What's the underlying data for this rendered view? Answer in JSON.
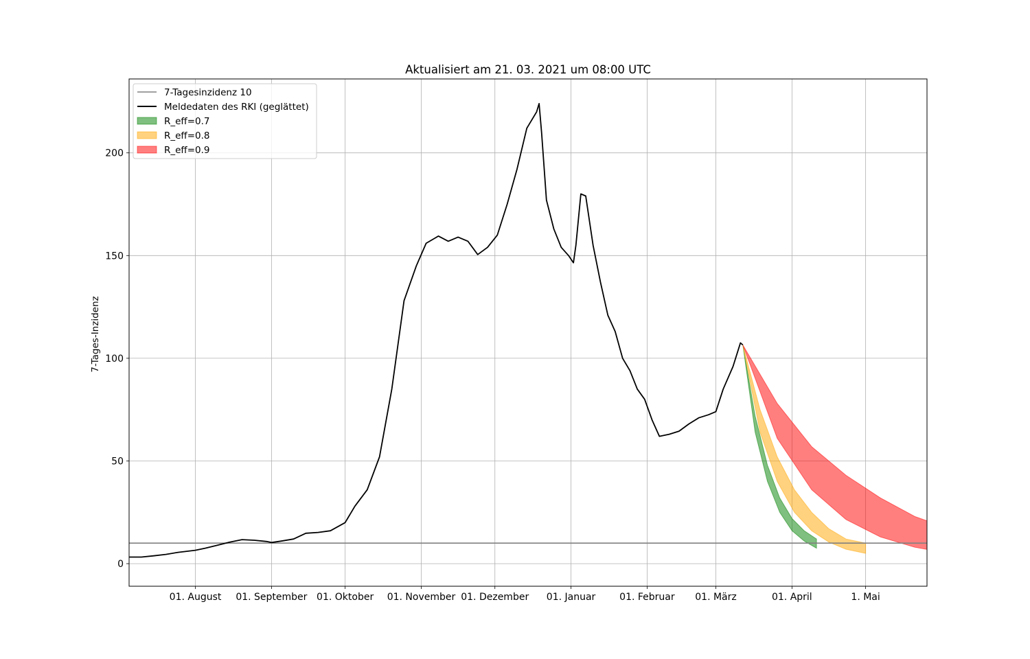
{
  "chart_data": {
    "type": "line",
    "title": "Aktualisiert am 21. 03. 2021 um 08:00 UTC",
    "xlabel": "",
    "ylabel": "7-Tages-Inzidenz",
    "xlim": [
      "2020-07-05",
      "2021-05-26"
    ],
    "ylim": [
      -11,
      236
    ],
    "grid": true,
    "legend_position": "top-left",
    "x_ticks": [
      {
        "date": "2020-08-01",
        "label": "01. August"
      },
      {
        "date": "2020-09-01",
        "label": "01. September"
      },
      {
        "date": "2020-10-01",
        "label": "01. Oktober"
      },
      {
        "date": "2020-11-01",
        "label": "01. November"
      },
      {
        "date": "2020-12-01",
        "label": "01. Dezember"
      },
      {
        "date": "2021-01-01",
        "label": "01. Januar"
      },
      {
        "date": "2021-02-01",
        "label": "01. Februar"
      },
      {
        "date": "2021-03-01",
        "label": "01. März"
      },
      {
        "date": "2021-04-01",
        "label": "01. April"
      },
      {
        "date": "2021-05-01",
        "label": "1. Mai"
      }
    ],
    "y_ticks": [
      {
        "value": 0,
        "label": "0"
      },
      {
        "value": 50,
        "label": "50"
      },
      {
        "value": 100,
        "label": "100"
      },
      {
        "value": 150,
        "label": "150"
      },
      {
        "value": 200,
        "label": "200"
      }
    ],
    "series": [
      {
        "name": "7-Tagesinzidenz 10",
        "kind": "hline",
        "value": 10,
        "color": "#808080"
      },
      {
        "name": "Meldedaten des RKI (geglättet)",
        "kind": "line",
        "color": "#000000",
        "points": [
          [
            "2020-07-05",
            3.2
          ],
          [
            "2020-07-10",
            3.2
          ],
          [
            "2020-07-15",
            3.8
          ],
          [
            "2020-07-20",
            4.5
          ],
          [
            "2020-07-25",
            5.5
          ],
          [
            "2020-08-01",
            6.5
          ],
          [
            "2020-08-05",
            7.5
          ],
          [
            "2020-08-10",
            9.0
          ],
          [
            "2020-08-15",
            10.5
          ],
          [
            "2020-08-20",
            11.7
          ],
          [
            "2020-08-25",
            11.4
          ],
          [
            "2020-08-30",
            10.8
          ],
          [
            "2020-09-01",
            10.3
          ],
          [
            "2020-09-05",
            11.0
          ],
          [
            "2020-09-10",
            12.0
          ],
          [
            "2020-09-15",
            14.8
          ],
          [
            "2020-09-20",
            15.2
          ],
          [
            "2020-09-25",
            16.0
          ],
          [
            "2020-10-01",
            20.0
          ],
          [
            "2020-10-05",
            28.0
          ],
          [
            "2020-10-10",
            36.0
          ],
          [
            "2020-10-15",
            52.0
          ],
          [
            "2020-10-20",
            85.0
          ],
          [
            "2020-10-25",
            128.0
          ],
          [
            "2020-10-30",
            145.0
          ],
          [
            "2020-11-03",
            156.0
          ],
          [
            "2020-11-08",
            159.5
          ],
          [
            "2020-11-12",
            157.0
          ],
          [
            "2020-11-16",
            159.0
          ],
          [
            "2020-11-20",
            157.0
          ],
          [
            "2020-11-24",
            150.5
          ],
          [
            "2020-11-28",
            154.0
          ],
          [
            "2020-12-02",
            160.0
          ],
          [
            "2020-12-06",
            175.0
          ],
          [
            "2020-12-10",
            192.0
          ],
          [
            "2020-12-14",
            212.0
          ],
          [
            "2020-12-18",
            220.0
          ],
          [
            "2020-12-19",
            224.0
          ],
          [
            "2020-12-20",
            210.0
          ],
          [
            "2020-12-22",
            177.0
          ],
          [
            "2020-12-25",
            163.0
          ],
          [
            "2020-12-28",
            154.0
          ],
          [
            "2020-12-31",
            150.0
          ],
          [
            "2021-01-02",
            146.5
          ],
          [
            "2021-01-03",
            155.0
          ],
          [
            "2021-01-05",
            180.0
          ],
          [
            "2021-01-07",
            179.0
          ],
          [
            "2021-01-10",
            155.0
          ],
          [
            "2021-01-13",
            137.0
          ],
          [
            "2021-01-16",
            121.0
          ],
          [
            "2021-01-19",
            113.0
          ],
          [
            "2021-01-22",
            100.0
          ],
          [
            "2021-01-25",
            94.0
          ],
          [
            "2021-01-28",
            85.0
          ],
          [
            "2021-01-31",
            80.0
          ],
          [
            "2021-02-03",
            70.0
          ],
          [
            "2021-02-06",
            62.0
          ],
          [
            "2021-02-10",
            63.0
          ],
          [
            "2021-02-14",
            64.5
          ],
          [
            "2021-02-18",
            68.0
          ],
          [
            "2021-02-22",
            71.0
          ],
          [
            "2021-02-26",
            72.5
          ],
          [
            "2021-03-01",
            74.0
          ],
          [
            "2021-03-04",
            85.0
          ],
          [
            "2021-03-08",
            96.0
          ],
          [
            "2021-03-11",
            107.5
          ],
          [
            "2021-03-12",
            106.5
          ]
        ]
      },
      {
        "name": "R_eff=0.7",
        "kind": "band",
        "color": "#008000",
        "upper": [
          [
            "2021-03-12",
            106.5
          ],
          [
            "2021-03-17",
            72.0
          ],
          [
            "2021-03-22",
            48.0
          ],
          [
            "2021-03-27",
            32.0
          ],
          [
            "2021-04-01",
            22.0
          ],
          [
            "2021-04-06",
            16.0
          ],
          [
            "2021-04-11",
            12.0
          ]
        ],
        "lower": [
          [
            "2021-03-12",
            106.5
          ],
          [
            "2021-03-17",
            64.0
          ],
          [
            "2021-03-22",
            40.0
          ],
          [
            "2021-03-27",
            25.0
          ],
          [
            "2021-04-01",
            16.0
          ],
          [
            "2021-04-06",
            11.0
          ],
          [
            "2021-04-11",
            7.5
          ]
        ]
      },
      {
        "name": "R_eff=0.8",
        "kind": "band",
        "color": "#FFA500",
        "upper": [
          [
            "2021-03-12",
            106.5
          ],
          [
            "2021-03-19",
            75.0
          ],
          [
            "2021-03-26",
            52.0
          ],
          [
            "2021-04-02",
            36.0
          ],
          [
            "2021-04-09",
            25.0
          ],
          [
            "2021-04-16",
            17.0
          ],
          [
            "2021-04-23",
            12.0
          ],
          [
            "2021-05-01",
            10.0
          ]
        ],
        "lower": [
          [
            "2021-03-12",
            106.5
          ],
          [
            "2021-03-19",
            64.0
          ],
          [
            "2021-03-26",
            40.0
          ],
          [
            "2021-04-02",
            25.0
          ],
          [
            "2021-04-09",
            16.0
          ],
          [
            "2021-04-16",
            10.5
          ],
          [
            "2021-04-23",
            7.0
          ],
          [
            "2021-05-01",
            5.0
          ]
        ]
      },
      {
        "name": "R_eff=0.9",
        "kind": "band",
        "color": "#FF0000",
        "upper": [
          [
            "2021-03-12",
            106.5
          ],
          [
            "2021-03-26",
            78.0
          ],
          [
            "2021-04-09",
            57.0
          ],
          [
            "2021-04-23",
            43.0
          ],
          [
            "2021-05-07",
            32.0
          ],
          [
            "2021-05-21",
            23.0
          ],
          [
            "2021-06-04",
            17.0
          ]
        ],
        "lower": [
          [
            "2021-03-12",
            106.5
          ],
          [
            "2021-03-26",
            61.0
          ],
          [
            "2021-04-09",
            36.0
          ],
          [
            "2021-04-23",
            21.5
          ],
          [
            "2021-05-07",
            13.0
          ],
          [
            "2021-05-21",
            8.0
          ],
          [
            "2021-06-04",
            5.0
          ]
        ]
      }
    ]
  }
}
